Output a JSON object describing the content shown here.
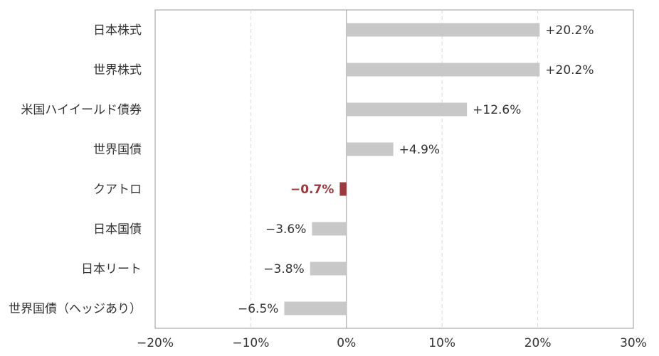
{
  "chart_data": {
    "type": "bar",
    "orientation": "horizontal",
    "categories": [
      "日本株式",
      "世界株式",
      "米国ハイイールド債券",
      "世界国債",
      "クアトロ",
      "日本国債",
      "日本リート",
      "世界国債（ヘッジあり）"
    ],
    "values": [
      20.2,
      20.2,
      12.6,
      4.9,
      -0.7,
      -3.6,
      -3.8,
      -6.5
    ],
    "value_labels": [
      "+20.2%",
      "+20.2%",
      "+12.6%",
      "+4.9%",
      "−0.7%",
      "−3.6%",
      "−3.8%",
      "−6.5%"
    ],
    "highlight_category": "クアトロ",
    "xlim": [
      -20,
      30
    ],
    "xticks": [
      -20,
      -10,
      0,
      10,
      20,
      30
    ],
    "xtick_labels": [
      "−20%",
      "−10%",
      "0%",
      "10%",
      "20%",
      "30%"
    ],
    "grid": "vertical dashed",
    "colors": {
      "bar": "#c8c8c8",
      "highlight": "#9b3a3f",
      "axis": "#999999",
      "grid": "#d9d9d9"
    }
  }
}
